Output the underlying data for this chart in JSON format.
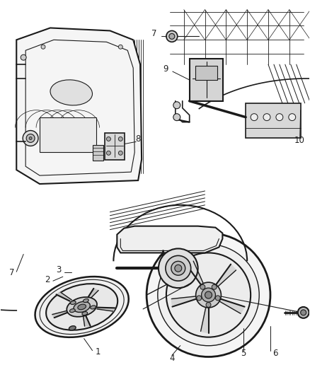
{
  "background_color": "#ffffff",
  "fig_width": 4.38,
  "fig_height": 5.33,
  "dpi": 100,
  "image_data": null
}
